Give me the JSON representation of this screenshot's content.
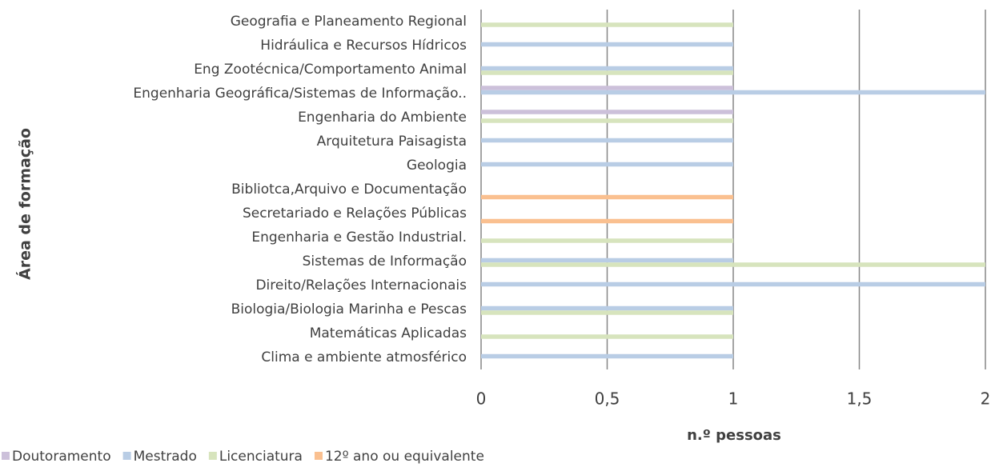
{
  "chart_data": {
    "type": "hbar",
    "categories": [
      "Geografia e Planeamento Regional",
      "Hidráulica e Recursos Hídricos",
      "Eng Zootécnica/Comportamento Animal",
      "Engenharia Geográfica/Sistemas de Informação..",
      "Engenharia do Ambiente",
      "Arquitetura Paisagista",
      "Geologia",
      "Bibliotca,Arquivo e Documentação",
      "Secretariado e Relações Públicas",
      "Engenharia e Gestão Industrial.",
      "Sistemas de Informação",
      "Direito/Relações Internacionais",
      "Biologia/Biologia Marinha e Pescas",
      "Matemáticas Aplicadas",
      "Clima e ambiente atmosférico"
    ],
    "series": [
      {
        "name": "Doutoramento",
        "color": "#ccc0da",
        "values": [
          null,
          null,
          null,
          1,
          1,
          null,
          null,
          null,
          null,
          null,
          null,
          null,
          null,
          null,
          null
        ]
      },
      {
        "name": "Mestrado",
        "color": "#b9cde5",
        "values": [
          null,
          1,
          1,
          2,
          null,
          1,
          1,
          null,
          null,
          null,
          1,
          2,
          1,
          null,
          1
        ]
      },
      {
        "name": "Licenciatura",
        "color": "#d7e4bd",
        "values": [
          1,
          null,
          1,
          null,
          1,
          null,
          null,
          null,
          null,
          1,
          2,
          null,
          1,
          1,
          null
        ]
      },
      {
        "name": "12º ano ou equivalente",
        "color": "#fac090",
        "values": [
          null,
          null,
          null,
          null,
          null,
          null,
          null,
          1,
          1,
          null,
          null,
          null,
          null,
          null,
          null
        ]
      }
    ],
    "xlim": [
      0,
      2
    ],
    "xticks": [
      0,
      {
        "value": 0.5,
        "label": "0,5"
      },
      1,
      {
        "value": 1.5,
        "label": "1,5"
      },
      2
    ],
    "xlabel": "n.º pessoas",
    "ylabel": "Área de formação",
    "grid": true,
    "legend": "bottom"
  }
}
